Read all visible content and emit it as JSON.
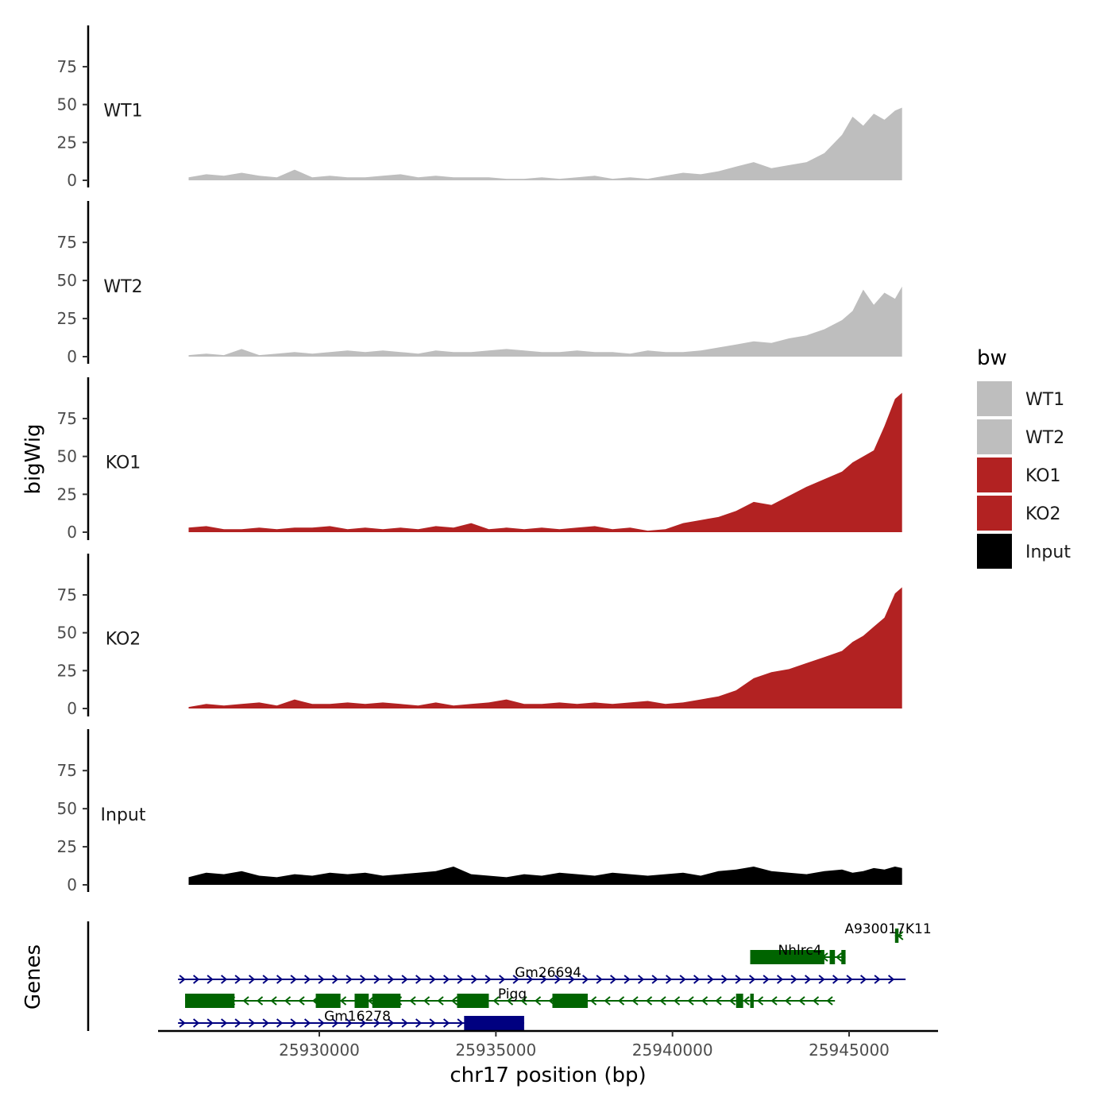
{
  "chart_data": {
    "type": "area",
    "title": "",
    "xlabel": "chr17 position (bp)",
    "ylabel": "bigWig",
    "genes_axis_label": "Genes",
    "xlim": [
      25925000,
      25948000
    ],
    "x_ticks": [
      25930000,
      25935000,
      25940000,
      25945000
    ],
    "x_tick_labels": [
      "25930000",
      "25935000",
      "25940000",
      "25945000"
    ],
    "ylim": [
      0,
      97
    ],
    "y_ticks": [
      0,
      25,
      50,
      75
    ],
    "y_tick_labels": [
      "0",
      "25",
      "50",
      "75"
    ],
    "legend": {
      "title": "bw",
      "position": "right",
      "entries": [
        {
          "label": "WT1",
          "color": "#bebebe"
        },
        {
          "label": "WT2",
          "color": "#bebebe"
        },
        {
          "label": "KO1",
          "color": "#b22222"
        },
        {
          "label": "KO2",
          "color": "#b22222"
        },
        {
          "label": "Input",
          "color": "#000000"
        }
      ]
    },
    "x": [
      25926300,
      25926800,
      25927300,
      25927800,
      25928300,
      25928800,
      25929300,
      25929800,
      25930300,
      25930800,
      25931300,
      25931800,
      25932300,
      25932800,
      25933300,
      25933800,
      25934300,
      25934800,
      25935300,
      25935800,
      25936300,
      25936800,
      25937300,
      25937800,
      25938300,
      25938800,
      25939300,
      25939800,
      25940300,
      25940800,
      25941300,
      25941800,
      25942300,
      25942800,
      25943300,
      25943800,
      25944300,
      25944800,
      25945100,
      25945400,
      25945700,
      25946000,
      25946300,
      25946500
    ],
    "series": [
      {
        "name": "WT1",
        "color": "#bebebe",
        "values": [
          2,
          4,
          3,
          5,
          3,
          2,
          7,
          2,
          3,
          2,
          2,
          3,
          4,
          2,
          3,
          2,
          2,
          2,
          1,
          1,
          2,
          1,
          2,
          3,
          1,
          2,
          1,
          3,
          5,
          4,
          6,
          9,
          12,
          8,
          10,
          12,
          18,
          30,
          42,
          36,
          44,
          40,
          46,
          48
        ]
      },
      {
        "name": "WT2",
        "color": "#bebebe",
        "values": [
          1,
          2,
          1,
          5,
          1,
          2,
          3,
          2,
          3,
          4,
          3,
          4,
          3,
          2,
          4,
          3,
          3,
          4,
          5,
          4,
          3,
          3,
          4,
          3,
          3,
          2,
          4,
          3,
          3,
          4,
          6,
          8,
          10,
          9,
          12,
          14,
          18,
          24,
          30,
          44,
          34,
          42,
          38,
          46
        ]
      },
      {
        "name": "KO1",
        "color": "#b22222",
        "values": [
          3,
          4,
          2,
          2,
          3,
          2,
          3,
          3,
          4,
          2,
          3,
          2,
          3,
          2,
          4,
          3,
          6,
          2,
          3,
          2,
          3,
          2,
          3,
          4,
          2,
          3,
          1,
          2,
          6,
          8,
          10,
          14,
          20,
          18,
          24,
          30,
          35,
          40,
          46,
          50,
          54,
          70,
          88,
          92
        ]
      },
      {
        "name": "KO2",
        "color": "#b22222",
        "values": [
          1,
          3,
          2,
          3,
          4,
          2,
          6,
          3,
          3,
          4,
          3,
          4,
          3,
          2,
          4,
          2,
          3,
          4,
          6,
          3,
          3,
          4,
          3,
          4,
          3,
          4,
          5,
          3,
          4,
          6,
          8,
          12,
          20,
          24,
          26,
          30,
          34,
          38,
          44,
          48,
          54,
          60,
          76,
          80
        ]
      },
      {
        "name": "Input",
        "color": "#000000",
        "values": [
          5,
          8,
          7,
          9,
          6,
          5,
          7,
          6,
          8,
          7,
          8,
          6,
          7,
          8,
          9,
          12,
          7,
          6,
          5,
          7,
          6,
          8,
          7,
          6,
          8,
          7,
          6,
          7,
          8,
          6,
          9,
          10,
          12,
          9,
          8,
          7,
          9,
          10,
          8,
          9,
          11,
          10,
          12,
          11
        ]
      }
    ],
    "genes": [
      {
        "name": "A930017K11",
        "strand": "-",
        "color": "#006400",
        "row": 0,
        "start": 25946300,
        "end": 25946500,
        "exons": [
          [
            25946300,
            25946400
          ]
        ]
      },
      {
        "name": "Nhlrc4",
        "strand": "-",
        "color": "#006400",
        "row": 1,
        "start": 25942200,
        "end": 25944900,
        "exons": [
          [
            25942200,
            25944300
          ],
          [
            25944450,
            25944600
          ],
          [
            25944780,
            25944900
          ]
        ]
      },
      {
        "name": "Gm26694",
        "strand": "+",
        "color": "#000080",
        "row": 2,
        "start": 25926000,
        "end": 25946600,
        "exons": []
      },
      {
        "name": "Pigq",
        "strand": "-",
        "color": "#006400",
        "row": 3,
        "start": 25926200,
        "end": 25944600,
        "exons": [
          [
            25926200,
            25927600
          ],
          [
            25929900,
            25930600
          ],
          [
            25931000,
            25931400
          ],
          [
            25931500,
            25932300
          ],
          [
            25933900,
            25934800
          ],
          [
            25936600,
            25937600
          ],
          [
            25941800,
            25942000
          ],
          [
            25942200,
            25942300
          ]
        ]
      },
      {
        "name": "Gm16278",
        "strand": "+",
        "color": "#000080",
        "row": 4,
        "start": 25926000,
        "end": 25935800,
        "exons": [
          [
            25934100,
            25935800
          ]
        ]
      }
    ]
  }
}
